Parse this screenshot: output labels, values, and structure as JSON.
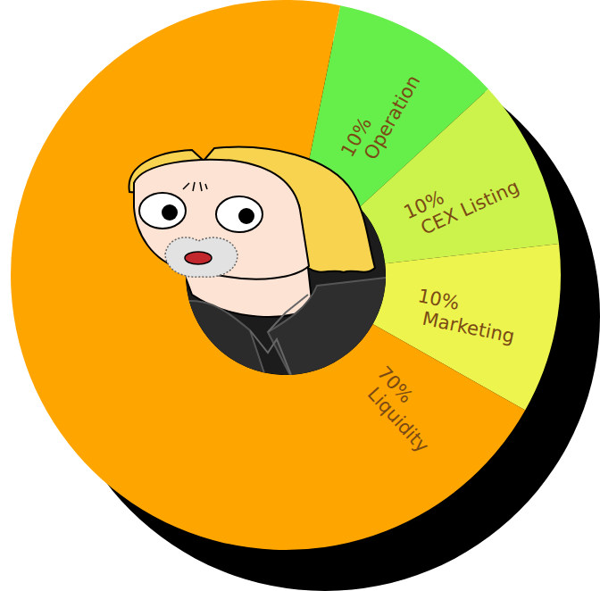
{
  "chart_data": {
    "type": "pie",
    "categories": [
      "Operation",
      "CEX Listing",
      "Marketing",
      "Liquidity"
    ],
    "values": [
      10,
      10,
      10,
      70
    ],
    "value_labels": [
      "10%",
      "10%",
      "10%",
      "70%"
    ],
    "colors": [
      "#66ee4a",
      "#ccf34c",
      "#eef44e",
      "#ffa500"
    ],
    "data_labels": true
  }
}
